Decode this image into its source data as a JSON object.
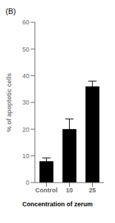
{
  "chart_data": {
    "type": "bar",
    "categories": [
      "Control",
      "10",
      "25"
    ],
    "values": [
      8,
      20,
      36
    ],
    "errors": [
      1.2,
      3.8,
      2.0
    ],
    "color": "#000000",
    "xlabel": "Concentration of zerum",
    "ylabel": "% of apoptotic cells",
    "ylim": [
      0,
      60
    ],
    "yticks": [
      0,
      10,
      20,
      30,
      40,
      50,
      60
    ],
    "annotations": [
      "(B)"
    ]
  }
}
